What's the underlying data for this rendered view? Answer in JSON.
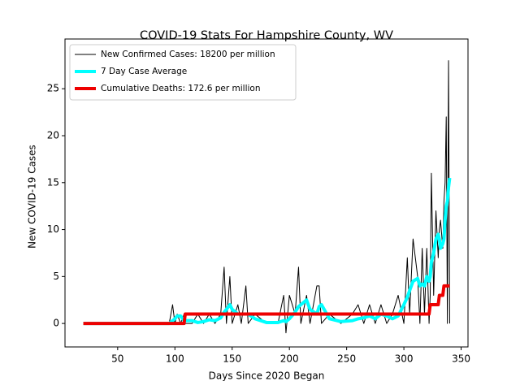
{
  "chart_data": {
    "type": "line",
    "title": "COVID-19 Stats For Hampshire County, WV",
    "xlabel": "Days Since 2020 Began",
    "ylabel": "New COVID-19 Cases",
    "x": [
      20,
      40,
      60,
      80,
      95,
      98,
      100,
      102,
      105,
      108,
      109,
      115,
      120,
      125,
      130,
      135,
      140,
      143,
      145,
      148,
      150,
      155,
      158,
      162,
      164,
      170,
      180,
      190,
      195,
      197,
      200,
      205,
      208,
      210,
      215,
      218,
      224,
      226,
      228,
      235,
      245,
      255,
      260,
      265,
      270,
      275,
      280,
      285,
      290,
      295,
      300,
      303,
      305,
      308,
      312,
      314,
      316,
      318,
      320,
      322,
      323,
      324,
      326,
      328,
      330,
      331,
      332,
      334,
      335,
      336,
      337,
      338,
      339,
      340
    ],
    "series": [
      {
        "name": "New Confirmed Cases: 18200 per million",
        "color": "#000000",
        "width": 1,
        "values": [
          0,
          0,
          0,
          0,
          0,
          2,
          0,
          1,
          0,
          1,
          0,
          0,
          1,
          0,
          1,
          0,
          1,
          6,
          0,
          5,
          0,
          2,
          0,
          4,
          0,
          1,
          0,
          0,
          3,
          -1,
          3,
          1,
          6,
          0,
          3,
          0,
          4,
          4,
          0,
          1,
          0,
          1,
          2,
          0,
          2,
          0,
          2,
          0,
          1,
          3,
          0,
          7,
          1,
          9,
          5,
          0,
          8,
          1,
          8,
          0,
          3,
          16,
          3,
          12,
          7,
          10,
          11,
          8,
          13,
          15,
          22,
          0,
          28,
          0
        ]
      },
      {
        "name": "7 Day Case Average",
        "color": "#00ffff",
        "width": 4,
        "values": [
          0,
          0,
          0,
          0,
          0,
          0.3,
          0.5,
          0.8,
          0.8,
          0.3,
          0.3,
          0.3,
          0.1,
          0.2,
          0.4,
          0.3,
          0.6,
          1.2,
          1.5,
          2.0,
          1.5,
          1.0,
          1.0,
          1.0,
          1.0,
          0.5,
          0.1,
          0.1,
          0.3,
          0.2,
          0.5,
          1.2,
          1.8,
          2.0,
          2.5,
          1.5,
          1.0,
          1.8,
          2.0,
          0.5,
          0.2,
          0.3,
          0.5,
          0.6,
          0.8,
          0.5,
          1.0,
          0.8,
          0.5,
          0.8,
          2.0,
          2.8,
          3.5,
          4.5,
          4.8,
          4,
          4.2,
          4,
          5,
          4.5,
          5,
          6.5,
          7.5,
          9,
          9.5,
          9,
          8,
          8.5,
          9,
          11,
          12.5,
          13,
          14.5,
          15.5
        ]
      },
      {
        "name": "Cumulative Deaths: 172.6 per million",
        "color": "#ee0000",
        "width": 4,
        "values": [
          0,
          0,
          0,
          0,
          0,
          0,
          0,
          0,
          0,
          0,
          1,
          1,
          1,
          1,
          1,
          1,
          1,
          1,
          1,
          1,
          1,
          1,
          1,
          1,
          1,
          1,
          1,
          1,
          1,
          1,
          1,
          1,
          1,
          1,
          1,
          1,
          1,
          1,
          1,
          1,
          1,
          1,
          1,
          1,
          1,
          1,
          1,
          1,
          1,
          1,
          1,
          1,
          1,
          1,
          1,
          1,
          1,
          1,
          1,
          1,
          2,
          2,
          2,
          2,
          2,
          3,
          3,
          3,
          4,
          4,
          4,
          4,
          4,
          4
        ]
      }
    ],
    "xlim": [
      4,
      356
    ],
    "ylim": [
      -2.5,
      30.3
    ],
    "xticks": [
      50,
      100,
      150,
      200,
      250,
      300,
      350
    ],
    "yticks": [
      0,
      5,
      10,
      15,
      20,
      25
    ],
    "legend": "upper left"
  }
}
